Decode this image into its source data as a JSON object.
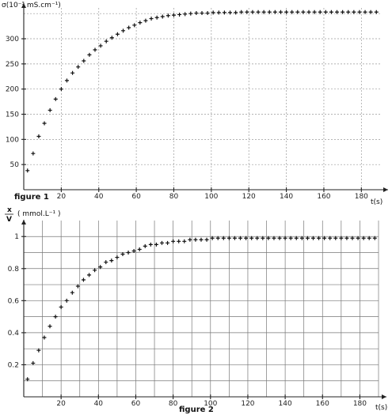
{
  "chart_data": [
    {
      "type": "scatter",
      "caption": "figure 1",
      "ylabel": "σ(10⁻³ mS.cm⁻¹)",
      "xlabel": "t(s)",
      "xlim": [
        0,
        190
      ],
      "ylim": [
        0,
        355
      ],
      "xticks": [
        20,
        40,
        60,
        80,
        100,
        120,
        140,
        160,
        180
      ],
      "yticks": [
        50,
        100,
        150,
        200,
        250,
        300
      ],
      "grid": true,
      "marker": "+",
      "series": [
        {
          "x": [
            2,
            5,
            8,
            11,
            14,
            17,
            20,
            23,
            26,
            29,
            32,
            35,
            38,
            41,
            44,
            47,
            50,
            53,
            56,
            59,
            62,
            65,
            68,
            71,
            74,
            77,
            80,
            83,
            86,
            89,
            92,
            95,
            98,
            101,
            104,
            107,
            110,
            113,
            116,
            119,
            122,
            125,
            128,
            131,
            134,
            137,
            140,
            143,
            146,
            149,
            152,
            155,
            158,
            161,
            164,
            167,
            170,
            173,
            176,
            179,
            182,
            185,
            188
          ],
          "y": [
            38,
            72,
            106,
            132,
            158,
            180,
            200,
            217,
            232,
            244,
            256,
            268,
            278,
            286,
            295,
            302,
            309,
            316,
            322,
            327,
            332,
            336,
            340,
            342,
            344,
            346,
            347,
            348,
            349,
            350,
            351,
            351,
            351,
            352,
            352,
            352,
            352,
            352,
            353,
            353,
            353,
            353,
            353,
            353,
            353,
            353,
            353,
            353,
            353,
            353,
            353,
            353,
            353,
            353,
            353,
            353,
            353,
            353,
            353,
            353,
            353,
            353,
            353
          ]
        }
      ]
    },
    {
      "type": "scatter",
      "caption": "figure 2",
      "ylabel_num": "x",
      "ylabel_den": "V",
      "ylabel_unit": "( mmol.L⁻¹ )",
      "xlabel": "t(s)",
      "xlim": [
        0,
        190
      ],
      "ylim": [
        0,
        1.08
      ],
      "xticks": [
        20,
        40,
        60,
        80,
        100,
        120,
        140,
        160,
        180
      ],
      "yticks": [
        0.2,
        0.4,
        0.6,
        0.8,
        1
      ],
      "ytick_labels": [
        "0.2",
        "0.4",
        "0.6",
        "0.8",
        "1"
      ],
      "grid": true,
      "marker": "+",
      "series": [
        {
          "x": [
            2,
            5,
            8,
            11,
            14,
            17,
            20,
            23,
            26,
            29,
            32,
            35,
            38,
            41,
            44,
            47,
            50,
            53,
            56,
            59,
            62,
            65,
            68,
            71,
            74,
            77,
            80,
            83,
            86,
            89,
            92,
            95,
            98,
            101,
            104,
            107,
            110,
            113,
            116,
            119,
            122,
            125,
            128,
            131,
            134,
            137,
            140,
            143,
            146,
            149,
            152,
            155,
            158,
            161,
            164,
            167,
            170,
            173,
            176,
            179,
            182,
            185,
            188
          ],
          "y": [
            0.11,
            0.21,
            0.29,
            0.37,
            0.44,
            0.5,
            0.56,
            0.6,
            0.65,
            0.69,
            0.73,
            0.76,
            0.79,
            0.81,
            0.84,
            0.85,
            0.87,
            0.89,
            0.9,
            0.91,
            0.92,
            0.94,
            0.95,
            0.95,
            0.96,
            0.96,
            0.97,
            0.97,
            0.97,
            0.98,
            0.98,
            0.98,
            0.98,
            0.99,
            0.99,
            0.99,
            0.99,
            0.99,
            0.99,
            0.99,
            0.99,
            0.99,
            0.99,
            0.99,
            0.99,
            0.99,
            0.99,
            0.99,
            0.99,
            0.99,
            0.99,
            0.99,
            0.99,
            0.99,
            0.99,
            0.99,
            0.99,
            0.99,
            0.99,
            0.99,
            0.99,
            0.99,
            0.99
          ]
        }
      ]
    }
  ]
}
